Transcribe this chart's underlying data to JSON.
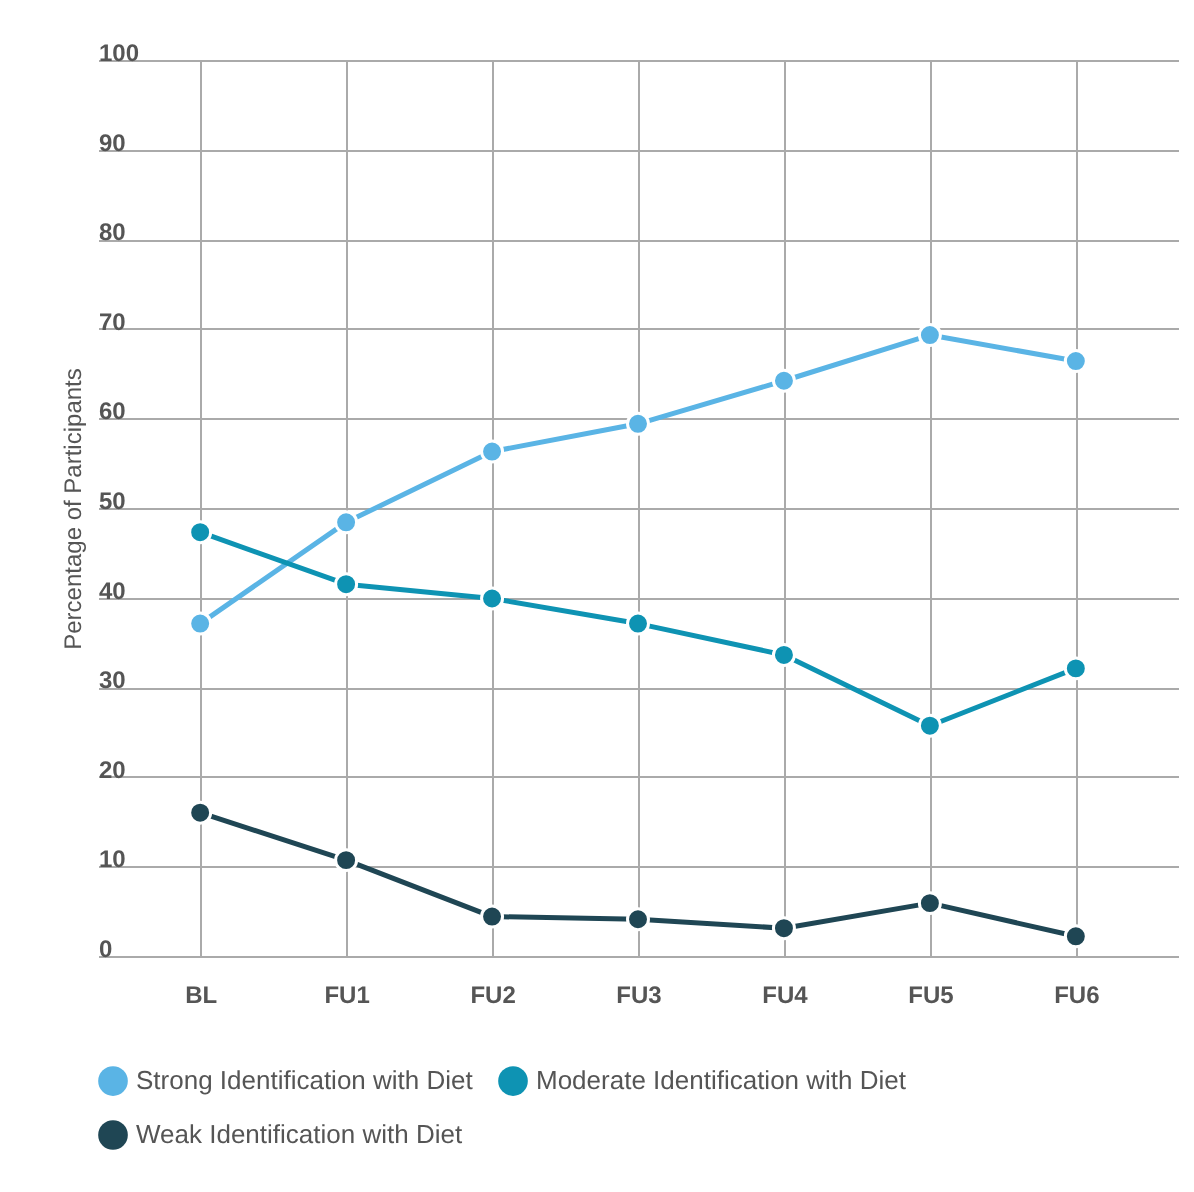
{
  "chart_data": {
    "type": "line",
    "ylabel": "Percentage of Participants",
    "categories": [
      "BL",
      "FU1",
      "FU2",
      "FU3",
      "FU4",
      "FU5",
      "FU6"
    ],
    "series": [
      {
        "name": "Strong Identification with Diet",
        "color": "#5ab4e5",
        "values": [
          37.1,
          48.4,
          56.3,
          59.4,
          64.2,
          69.3,
          66.4
        ]
      },
      {
        "name": "Moderate Identification with Diet",
        "color": "#0e93b3",
        "values": [
          47.3,
          41.5,
          39.9,
          37.1,
          33.6,
          25.7,
          32.1
        ]
      },
      {
        "name": "Weak Identification with Diet",
        "color": "#1f4654",
        "values": [
          16.0,
          10.7,
          4.4,
          4.1,
          3.1,
          5.9,
          2.2
        ]
      }
    ],
    "ylim": [
      0,
      100
    ],
    "yticks": [
      0,
      10,
      20,
      30,
      40,
      50,
      60,
      70,
      80,
      90,
      100
    ],
    "grid": true,
    "legend": "bottom",
    "marker": "circle",
    "line_style": "solid"
  }
}
